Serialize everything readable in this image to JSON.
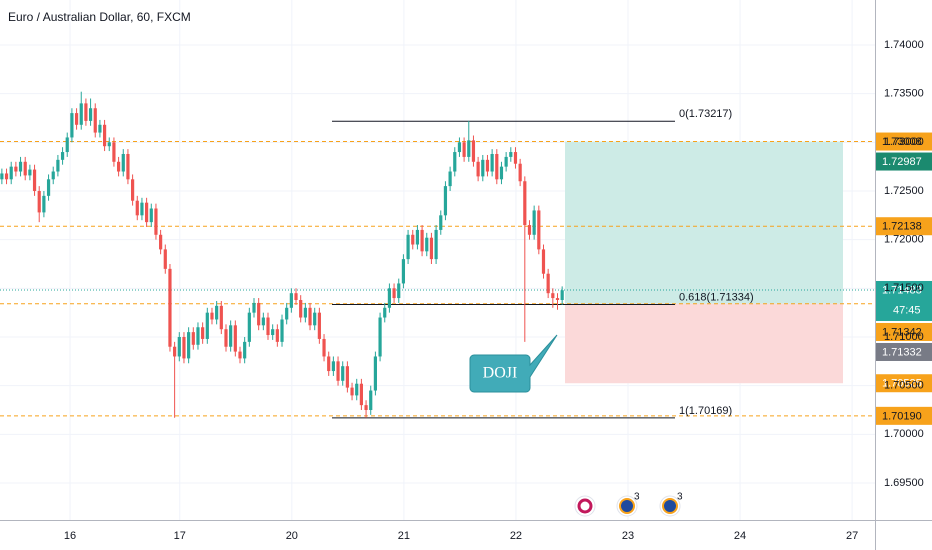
{
  "chart_data": {
    "type": "candlestick",
    "title": "Euro / Australian Dollar, 60, FXCM",
    "up_color": "#26a69a",
    "down_color": "#ef5350",
    "grid": true,
    "xlim": [
      -0.4,
      187
    ],
    "xticks": [
      {
        "value": 14.6,
        "label": "16"
      },
      {
        "value": 38.1,
        "label": "17"
      },
      {
        "value": 62.1,
        "label": "20"
      },
      {
        "value": 86.1,
        "label": "21"
      },
      {
        "value": 110.1,
        "label": "22"
      },
      {
        "value": 134.1,
        "label": "23"
      },
      {
        "value": 158.1,
        "label": "24"
      },
      {
        "value": 182.1,
        "label": "27"
      }
    ],
    "ylim": [
      1.6912,
      1.74462
    ],
    "yticks": [
      {
        "value": 1.74,
        "label": "1.74000"
      },
      {
        "value": 1.735,
        "label": "1.73500"
      },
      {
        "value": 1.73,
        "label": "1.73000"
      },
      {
        "value": 1.725,
        "label": "1.72500"
      },
      {
        "value": 1.72,
        "label": "1.72000"
      },
      {
        "value": 1.715,
        "label": "1.71500"
      },
      {
        "value": 1.71,
        "label": "1.71000"
      },
      {
        "value": 1.705,
        "label": "1.70500"
      },
      {
        "value": 1.7,
        "label": "1.70000"
      },
      {
        "value": 1.695,
        "label": "1.69500"
      }
    ],
    "ohlc": [
      [
        1.7262,
        1.7273,
        1.7257,
        1.7268
      ],
      [
        1.7268,
        1.7273,
        1.7257,
        1.7262
      ],
      [
        1.7262,
        1.728,
        1.7257,
        1.7275
      ],
      [
        1.7275,
        1.728,
        1.7265,
        1.727
      ],
      [
        1.727,
        1.7285,
        1.7265,
        1.728
      ],
      [
        1.728,
        1.7285,
        1.7261,
        1.7266
      ],
      [
        1.7266,
        1.7277,
        1.7261,
        1.7272
      ],
      [
        1.7272,
        1.7277,
        1.7245,
        1.725
      ],
      [
        1.725,
        1.7255,
        1.7218,
        1.7228
      ],
      [
        1.7228,
        1.725,
        1.7223,
        1.7245
      ],
      [
        1.7245,
        1.7267,
        1.724,
        1.7262
      ],
      [
        1.7262,
        1.7275,
        1.7257,
        1.727
      ],
      [
        1.727,
        1.7287,
        1.7265,
        1.7282
      ],
      [
        1.7282,
        1.7295,
        1.7277,
        1.729
      ],
      [
        1.729,
        1.731,
        1.7285,
        1.7305
      ],
      [
        1.7305,
        1.7335,
        1.73,
        1.733
      ],
      [
        1.733,
        1.7335,
        1.7313,
        1.7318
      ],
      [
        1.7318,
        1.7352,
        1.7313,
        1.734
      ],
      [
        1.734,
        1.7345,
        1.7317,
        1.7322
      ],
      [
        1.7322,
        1.7345,
        1.7317,
        1.7335
      ],
      [
        1.7335,
        1.734,
        1.7305,
        1.731
      ],
      [
        1.731,
        1.7323,
        1.7305,
        1.7318
      ],
      [
        1.7318,
        1.7323,
        1.7291,
        1.7296
      ],
      [
        1.7296,
        1.7305,
        1.7291,
        1.73
      ],
      [
        1.73,
        1.7305,
        1.7275,
        1.728
      ],
      [
        1.728,
        1.7285,
        1.7265,
        1.727
      ],
      [
        1.727,
        1.7293,
        1.7265,
        1.7288
      ],
      [
        1.7288,
        1.7293,
        1.7257,
        1.7262
      ],
      [
        1.7262,
        1.7267,
        1.7235,
        1.724
      ],
      [
        1.724,
        1.7245,
        1.722,
        1.7225
      ],
      [
        1.7225,
        1.7243,
        1.722,
        1.7238
      ],
      [
        1.7238,
        1.7243,
        1.7213,
        1.7218
      ],
      [
        1.7218,
        1.7237,
        1.7213,
        1.7232
      ],
      [
        1.7232,
        1.7237,
        1.72,
        1.7205
      ],
      [
        1.7205,
        1.721,
        1.7185,
        1.719
      ],
      [
        1.719,
        1.7195,
        1.7165,
        1.717
      ],
      [
        1.717,
        1.7175,
        1.7085,
        1.709
      ],
      [
        1.709,
        1.7095,
        1.7017,
        1.708
      ],
      [
        1.708,
        1.7105,
        1.7075,
        1.71
      ],
      [
        1.71,
        1.7105,
        1.7073,
        1.7078
      ],
      [
        1.7078,
        1.711,
        1.7073,
        1.7105
      ],
      [
        1.7105,
        1.711,
        1.7087,
        1.7092
      ],
      [
        1.7092,
        1.7115,
        1.7087,
        1.711
      ],
      [
        1.711,
        1.7115,
        1.7093,
        1.7098
      ],
      [
        1.7098,
        1.713,
        1.7093,
        1.7125
      ],
      [
        1.7125,
        1.713,
        1.7113,
        1.7118
      ],
      [
        1.7118,
        1.7137,
        1.7113,
        1.7132
      ],
      [
        1.7132,
        1.7137,
        1.7103,
        1.7108
      ],
      [
        1.7108,
        1.7113,
        1.7085,
        1.709
      ],
      [
        1.709,
        1.7117,
        1.7085,
        1.7112
      ],
      [
        1.7112,
        1.7117,
        1.708,
        1.7085
      ],
      [
        1.7085,
        1.709,
        1.7073,
        1.7078
      ],
      [
        1.7078,
        1.71,
        1.7073,
        1.7095
      ],
      [
        1.7095,
        1.713,
        1.709,
        1.7125
      ],
      [
        1.7125,
        1.714,
        1.712,
        1.7135
      ],
      [
        1.7135,
        1.714,
        1.7107,
        1.7112
      ],
      [
        1.7112,
        1.7125,
        1.7107,
        1.712
      ],
      [
        1.712,
        1.7125,
        1.7097,
        1.7102
      ],
      [
        1.7102,
        1.7113,
        1.7097,
        1.7108
      ],
      [
        1.7108,
        1.7113,
        1.709,
        1.7095
      ],
      [
        1.7095,
        1.7123,
        1.709,
        1.7118
      ],
      [
        1.7118,
        1.7135,
        1.7113,
        1.713
      ],
      [
        1.713,
        1.715,
        1.7125,
        1.7145
      ],
      [
        1.7145,
        1.715,
        1.7133,
        1.7138
      ],
      [
        1.7138,
        1.7143,
        1.7115,
        1.712
      ],
      [
        1.712,
        1.7135,
        1.7115,
        1.713
      ],
      [
        1.713,
        1.7135,
        1.7107,
        1.7112
      ],
      [
        1.7112,
        1.713,
        1.7107,
        1.7125
      ],
      [
        1.7125,
        1.713,
        1.7093,
        1.7098
      ],
      [
        1.7098,
        1.7103,
        1.7075,
        1.708
      ],
      [
        1.708,
        1.7085,
        1.706,
        1.7065
      ],
      [
        1.7065,
        1.708,
        1.706,
        1.7075
      ],
      [
        1.7075,
        1.708,
        1.705,
        1.7055
      ],
      [
        1.7055,
        1.7075,
        1.705,
        1.707
      ],
      [
        1.707,
        1.7075,
        1.7043,
        1.7048
      ],
      [
        1.7048,
        1.7053,
        1.7035,
        1.704
      ],
      [
        1.704,
        1.7057,
        1.7035,
        1.7052
      ],
      [
        1.7052,
        1.7057,
        1.7025,
        1.703
      ],
      [
        1.703,
        1.7035,
        1.7017,
        1.7025
      ],
      [
        1.7025,
        1.705,
        1.702,
        1.7045
      ],
      [
        1.7045,
        1.7085,
        1.704,
        1.708
      ],
      [
        1.708,
        1.7125,
        1.7075,
        1.712
      ],
      [
        1.712,
        1.7135,
        1.7115,
        1.713
      ],
      [
        1.713,
        1.7155,
        1.7125,
        1.715
      ],
      [
        1.715,
        1.7155,
        1.7135,
        1.714
      ],
      [
        1.714,
        1.716,
        1.7135,
        1.7155
      ],
      [
        1.7155,
        1.7185,
        1.715,
        1.718
      ],
      [
        1.718,
        1.721,
        1.7175,
        1.7205
      ],
      [
        1.7205,
        1.721,
        1.719,
        1.7195
      ],
      [
        1.7195,
        1.7215,
        1.719,
        1.721
      ],
      [
        1.721,
        1.7215,
        1.7183,
        1.7188
      ],
      [
        1.7188,
        1.7207,
        1.7183,
        1.7202
      ],
      [
        1.7202,
        1.7207,
        1.7175,
        1.718
      ],
      [
        1.718,
        1.7215,
        1.7175,
        1.721
      ],
      [
        1.721,
        1.723,
        1.7205,
        1.7225
      ],
      [
        1.7225,
        1.726,
        1.722,
        1.7255
      ],
      [
        1.7255,
        1.7275,
        1.725,
        1.727
      ],
      [
        1.727,
        1.7295,
        1.7265,
        1.729
      ],
      [
        1.729,
        1.7305,
        1.7285,
        1.73
      ],
      [
        1.73,
        1.7305,
        1.728,
        1.7285
      ],
      [
        1.7285,
        1.7322,
        1.728,
        1.7302
      ],
      [
        1.7302,
        1.7307,
        1.7275,
        1.728
      ],
      [
        1.728,
        1.7285,
        1.726,
        1.7265
      ],
      [
        1.7265,
        1.7287,
        1.726,
        1.7282
      ],
      [
        1.7282,
        1.7287,
        1.7265,
        1.727
      ],
      [
        1.727,
        1.7293,
        1.7265,
        1.7288
      ],
      [
        1.7288,
        1.7293,
        1.7257,
        1.7262
      ],
      [
        1.7262,
        1.728,
        1.7257,
        1.7275
      ],
      [
        1.7275,
        1.729,
        1.727,
        1.7285
      ],
      [
        1.7285,
        1.7295,
        1.728,
        1.729
      ],
      [
        1.729,
        1.7295,
        1.7273,
        1.7278
      ],
      [
        1.7278,
        1.7283,
        1.7255,
        1.726
      ],
      [
        1.726,
        1.7265,
        1.7095,
        1.7215
      ],
      [
        1.7215,
        1.722,
        1.72,
        1.7205
      ],
      [
        1.7205,
        1.7235,
        1.72,
        1.723
      ],
      [
        1.723,
        1.7235,
        1.7185,
        1.719
      ],
      [
        1.719,
        1.7195,
        1.716,
        1.7165
      ],
      [
        1.7165,
        1.717,
        1.714,
        1.7145
      ],
      [
        1.7145,
        1.715,
        1.713,
        1.714
      ],
      [
        1.714,
        1.7145,
        1.7128,
        1.7138
      ],
      [
        1.7138,
        1.7152,
        1.7133,
        1.7148
      ]
    ],
    "levels": [
      {
        "value": 1.73008,
        "color": "#f7a21b"
      },
      {
        "value": 1.72138,
        "color": "#f7a21b"
      },
      {
        "value": 1.71342,
        "color": "#f7a21b"
      },
      {
        "value": 1.7019,
        "label": "1.70190",
        "color": "#f7a21b"
      }
    ],
    "fib": [
      {
        "value": 1.73217,
        "label": "0(1.73217)"
      },
      {
        "value": 1.71334,
        "label": "0.618(1.71334)"
      },
      {
        "value": 1.70169,
        "label": "1(1.70169)"
      }
    ],
    "position": {
      "target": 1.73008,
      "entry": 1.71342,
      "stop": 1.70525,
      "profit_color": "#cdebe6",
      "loss_color": "#fbd9d9"
    },
    "current_price": {
      "value": 1.71483,
      "countdown": "47:45",
      "color": "#26a69a"
    },
    "price_tags": [
      {
        "value": 1.72987,
        "color": "#1b8a6f"
      },
      {
        "value": 1.71332,
        "color": "#787b86"
      },
      {
        "value": 1.70525,
        "color": "#f7a21b"
      }
    ],
    "annotations": [
      {
        "text": "DOJI"
      }
    ],
    "event_badges": [
      3,
      3
    ]
  }
}
